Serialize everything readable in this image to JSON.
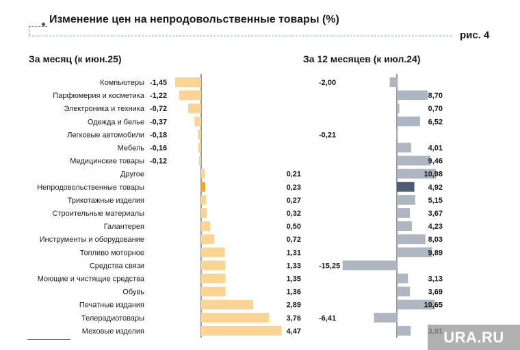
{
  "title": "Изменение цен на непродовольственные товары (%)",
  "figure_label": "рис. 4",
  "watermark": "URA.RU",
  "colors": {
    "month_bar": "#fbd494",
    "month_highlight": "#f5a623",
    "year_bar": "#aeb7c1",
    "year_highlight": "#4d5e72",
    "axis": "#333333"
  },
  "chart_data": [
    {
      "type": "bar",
      "orientation": "horizontal",
      "title": "За месяц (к июн.25)",
      "categories": [
        "Компьютеры",
        "Парфюмерия и косметика",
        "Электроника и техника",
        "Одежда и белье",
        "Легковые автомобили",
        "Мебель",
        "Медицинские товары",
        "Другое",
        "Непродовольственные товары",
        "Трикотажные изделия",
        "Строительные материалы",
        "Галантерея",
        "Инструменты и оборудование",
        "Топливо моторное",
        "Средства связи",
        "Моющие и чистящие средства",
        "Обувь",
        "Печатные издания",
        "Телерадиотовары",
        "Меховые изделия"
      ],
      "values": [
        -1.45,
        -1.22,
        -0.72,
        -0.37,
        -0.18,
        -0.16,
        -0.12,
        0.21,
        0.23,
        0.27,
        0.32,
        0.5,
        0.72,
        1.31,
        1.33,
        1.35,
        1.36,
        2.89,
        3.76,
        4.47
      ],
      "labels": [
        "-1,45",
        "-1,22",
        "-0,72",
        "-0,37",
        "-0,18",
        "-0,16",
        "-0,12",
        "0,21",
        "0,23",
        "0,27",
        "0,32",
        "0,50",
        "0,72",
        "1,31",
        "1,33",
        "1,35",
        "1,36",
        "2,89",
        "3,76",
        "4,47"
      ],
      "highlight": "Непродовольственные товары"
    },
    {
      "type": "bar",
      "orientation": "horizontal",
      "title": "За 12 месяцев (к июл.24)",
      "categories": [
        "Компьютеры",
        "Парфюмерия и косметика",
        "Электроника и техника",
        "Одежда и белье",
        "Легковые автомобили",
        "Мебель",
        "Медицинские товары",
        "Другое",
        "Непродовольственные товары",
        "Трикотажные изделия",
        "Строительные материалы",
        "Галантерея",
        "Инструменты и оборудование",
        "Топливо моторное",
        "Средства связи",
        "Моющие и чистящие средства",
        "Обувь",
        "Печатные издания",
        "Телерадиотовары",
        "Меховые изделия"
      ],
      "values": [
        -2.0,
        8.7,
        0.7,
        6.52,
        -0.21,
        4.01,
        9.46,
        10.98,
        4.92,
        5.15,
        3.67,
        4.23,
        8.03,
        9.89,
        -15.25,
        3.13,
        3.69,
        10.65,
        -6.41,
        3.91
      ],
      "labels": [
        "-2,00",
        "8,70",
        "0,70",
        "6,52",
        "-0,21",
        "4,01",
        "9,46",
        "10,98",
        "4,92",
        "5,15",
        "3,67",
        "4,23",
        "8,03",
        "9,89",
        "-15,25",
        "3,13",
        "3,69",
        "10,65",
        "-6,41",
        "3,91"
      ],
      "highlight": "Непродовольственные товары"
    }
  ]
}
